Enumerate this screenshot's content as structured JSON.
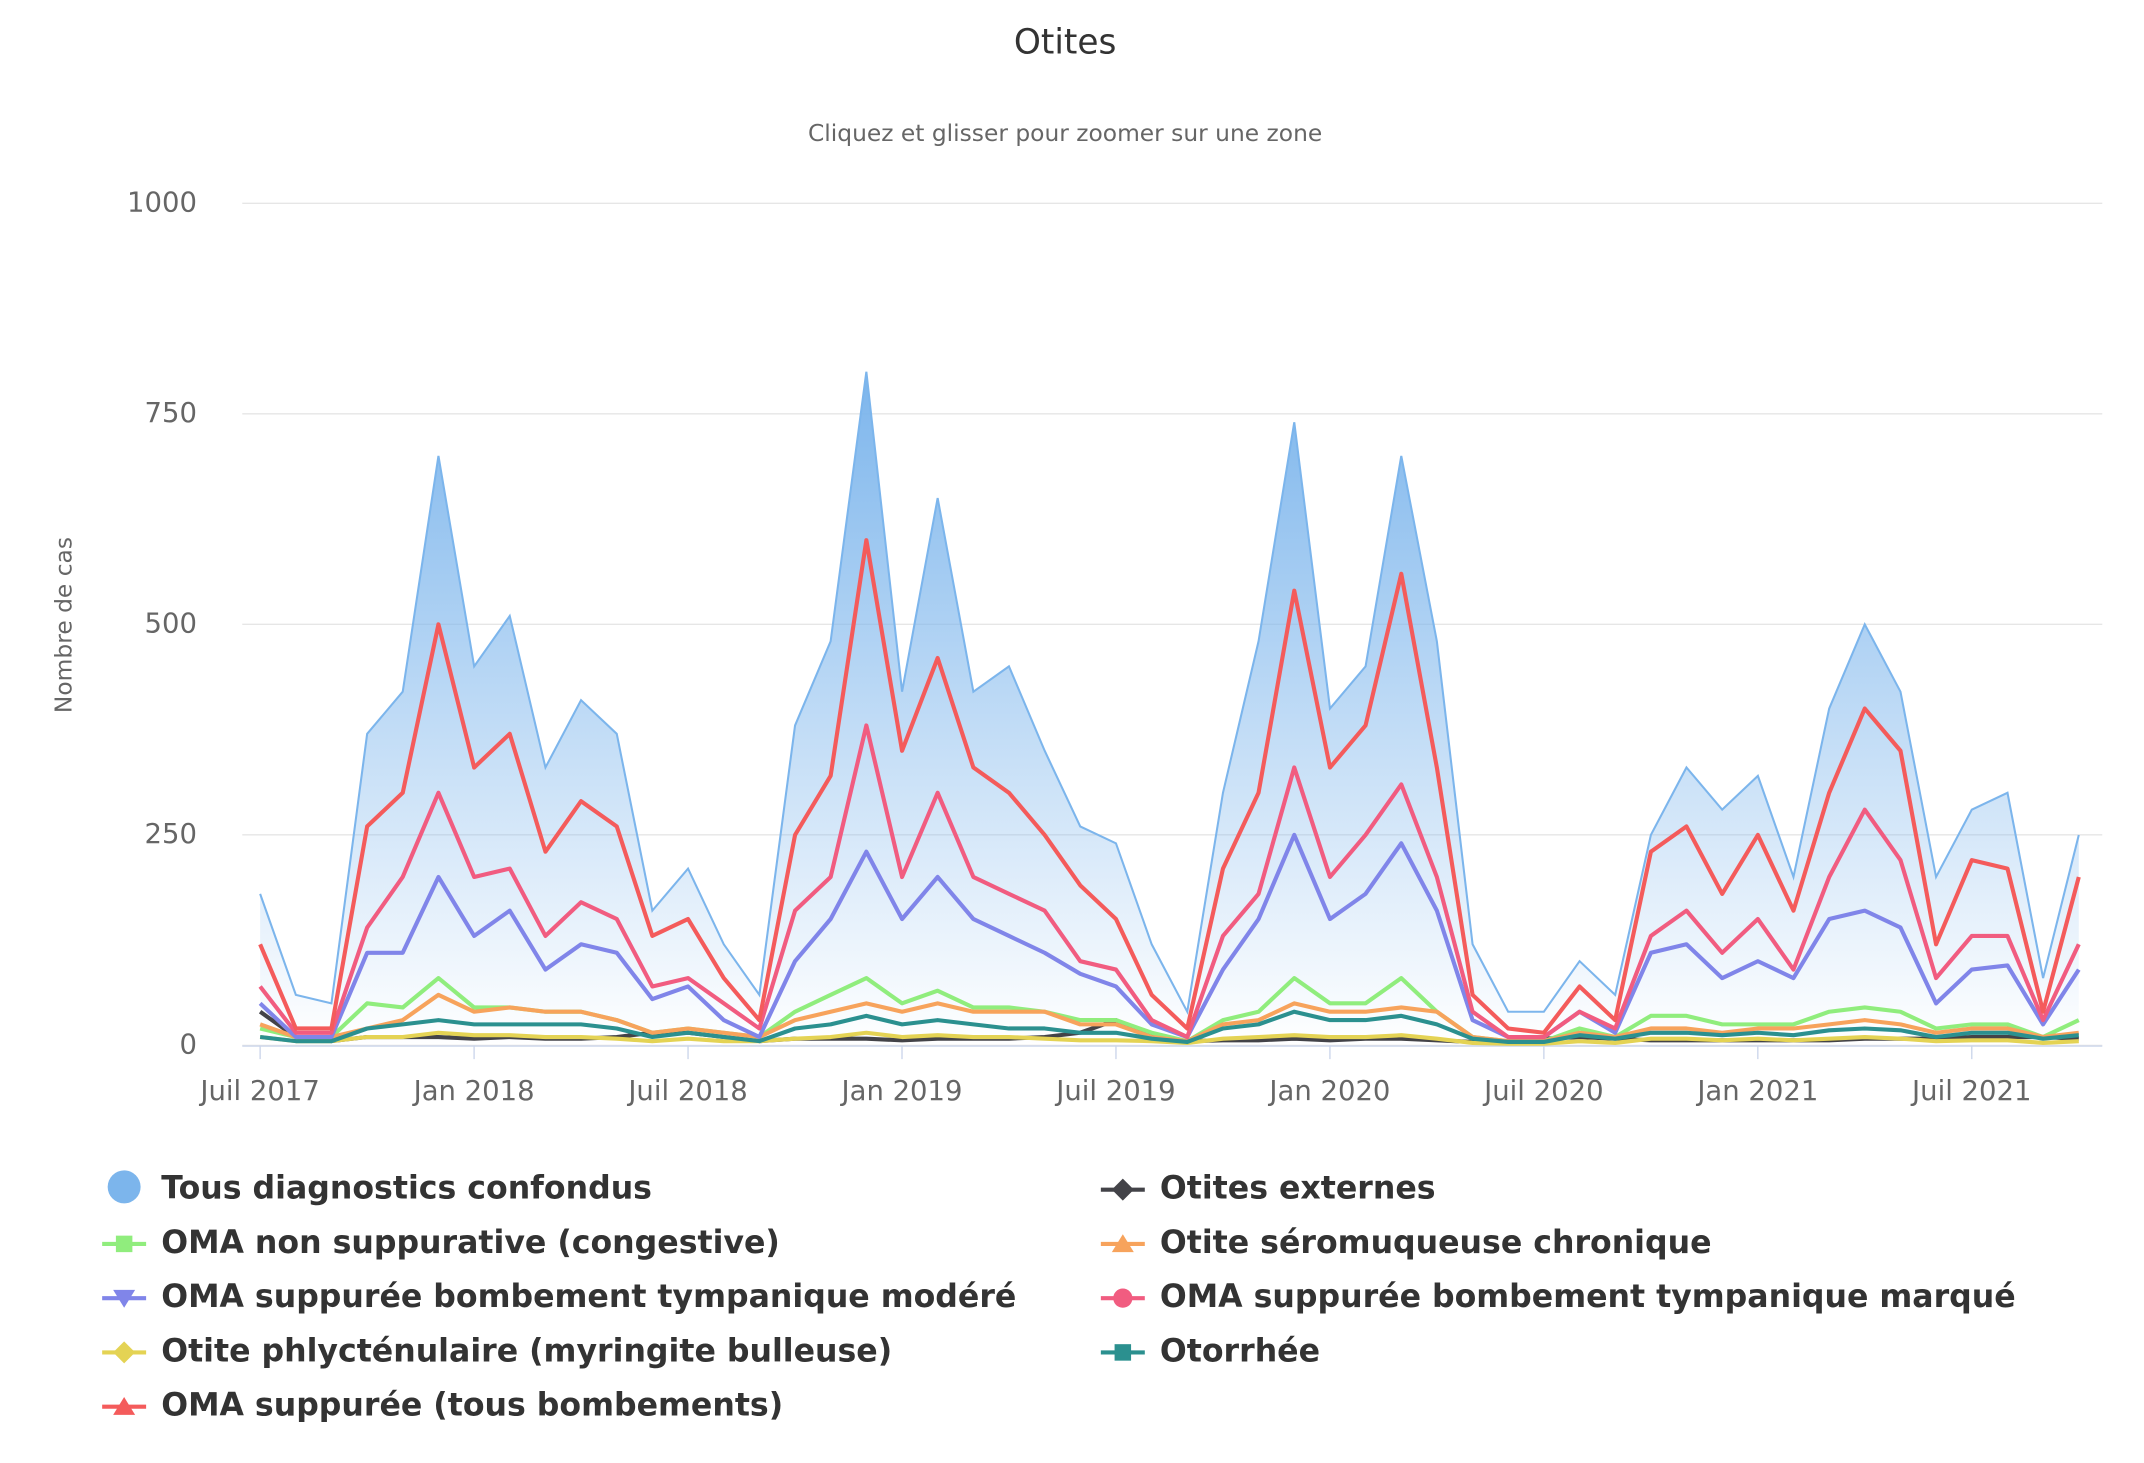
{
  "chart_data": {
    "type": "line",
    "title": "Otites",
    "subtitle": "Cliquez et glisser pour zoomer sur une zone",
    "y_label": "Nombre de cas",
    "x": [
      "2017-07",
      "2017-08",
      "2017-09",
      "2017-10",
      "2017-11",
      "2017-12",
      "2018-01",
      "2018-02",
      "2018-03",
      "2018-04",
      "2018-05",
      "2018-06",
      "2018-07",
      "2018-08",
      "2018-09",
      "2018-10",
      "2018-11",
      "2018-12",
      "2019-01",
      "2019-02",
      "2019-03",
      "2019-04",
      "2019-05",
      "2019-06",
      "2019-07",
      "2019-08",
      "2019-09",
      "2019-10",
      "2019-11",
      "2019-12",
      "2020-01",
      "2020-02",
      "2020-03",
      "2020-04",
      "2020-05",
      "2020-06",
      "2020-07",
      "2020-08",
      "2020-09",
      "2020-10",
      "2020-11",
      "2020-12",
      "2021-01",
      "2021-02",
      "2021-03",
      "2021-04",
      "2021-05",
      "2021-06",
      "2021-07",
      "2021-08",
      "2021-09",
      "2021-10"
    ],
    "xticks": [
      {
        "value": "2017-07",
        "label": "Juil 2017"
      },
      {
        "value": "2018-01",
        "label": "Jan 2018"
      },
      {
        "value": "2018-07",
        "label": "Juil 2018"
      },
      {
        "value": "2019-01",
        "label": "Jan 2019"
      },
      {
        "value": "2019-07",
        "label": "Juil 2019"
      },
      {
        "value": "2020-01",
        "label": "Jan 2020"
      },
      {
        "value": "2020-07",
        "label": "Juil 2020"
      },
      {
        "value": "2021-01",
        "label": "Jan 2021"
      },
      {
        "value": "2021-07",
        "label": "Juil 2021"
      }
    ],
    "ylim": [
      0,
      1000
    ],
    "yticks": [
      0,
      250,
      500,
      750,
      1000
    ],
    "grid": true,
    "legend": "bottom",
    "series": [
      {
        "name": "Tous diagnostics confondus",
        "color": "#7cb5ec",
        "marker": "circle",
        "area": true,
        "values": [
          180,
          60,
          50,
          370,
          420,
          700,
          450,
          510,
          330,
          410,
          370,
          160,
          210,
          120,
          60,
          380,
          480,
          800,
          420,
          650,
          420,
          450,
          350,
          260,
          240,
          120,
          40,
          300,
          480,
          740,
          400,
          450,
          700,
          480,
          120,
          40,
          40,
          100,
          60,
          250,
          330,
          280,
          320,
          200,
          400,
          500,
          420,
          200,
          280,
          300,
          80,
          250
        ]
      },
      {
        "name": "Otites externes",
        "color": "#434348",
        "marker": "diamond",
        "values": [
          40,
          10,
          5,
          10,
          10,
          10,
          8,
          10,
          8,
          8,
          10,
          15,
          15,
          10,
          5,
          8,
          8,
          8,
          6,
          8,
          8,
          8,
          10,
          15,
          30,
          10,
          5,
          6,
          6,
          8,
          6,
          8,
          8,
          6,
          4,
          5,
          8,
          10,
          8,
          6,
          6,
          6,
          6,
          6,
          6,
          8,
          8,
          8,
          10,
          10,
          10,
          8
        ]
      },
      {
        "name": "OMA non suppurative (congestive)",
        "color": "#90ed7d",
        "marker": "square",
        "values": [
          20,
          10,
          10,
          50,
          45,
          80,
          45,
          45,
          40,
          40,
          30,
          15,
          20,
          15,
          10,
          40,
          60,
          80,
          50,
          65,
          45,
          45,
          40,
          30,
          30,
          15,
          5,
          30,
          40,
          80,
          50,
          50,
          80,
          40,
          10,
          5,
          5,
          20,
          10,
          35,
          35,
          25,
          25,
          25,
          40,
          45,
          40,
          20,
          25,
          25,
          10,
          30
        ]
      },
      {
        "name": "Otite séromuqueuse chronique",
        "color": "#f7a35c",
        "marker": "triangle",
        "values": [
          25,
          10,
          10,
          20,
          30,
          60,
          40,
          45,
          40,
          40,
          30,
          15,
          20,
          15,
          10,
          30,
          40,
          50,
          40,
          50,
          40,
          40,
          40,
          25,
          25,
          10,
          5,
          25,
          30,
          50,
          40,
          40,
          45,
          40,
          10,
          5,
          5,
          15,
          10,
          20,
          20,
          15,
          20,
          20,
          25,
          30,
          25,
          15,
          20,
          20,
          10,
          15
        ]
      },
      {
        "name": "OMA suppurée bombement tympanique modéré",
        "color": "#8085e9",
        "marker": "triangle-down",
        "values": [
          50,
          10,
          10,
          110,
          110,
          200,
          130,
          160,
          90,
          120,
          110,
          55,
          70,
          30,
          10,
          100,
          150,
          230,
          150,
          200,
          150,
          130,
          110,
          85,
          70,
          25,
          10,
          90,
          150,
          250,
          150,
          180,
          240,
          160,
          30,
          10,
          10,
          40,
          15,
          110,
          120,
          80,
          100,
          80,
          150,
          160,
          140,
          50,
          90,
          95,
          25,
          90
        ]
      },
      {
        "name": "OMA suppurée bombement tympanique marqué",
        "color": "#f15c80",
        "marker": "circle",
        "values": [
          70,
          15,
          15,
          140,
          200,
          300,
          200,
          210,
          130,
          170,
          150,
          70,
          80,
          50,
          20,
          160,
          200,
          380,
          200,
          300,
          200,
          180,
          160,
          100,
          90,
          30,
          10,
          130,
          180,
          330,
          200,
          250,
          310,
          200,
          40,
          10,
          10,
          40,
          20,
          130,
          160,
          110,
          150,
          90,
          200,
          280,
          220,
          80,
          130,
          130,
          30,
          120
        ]
      },
      {
        "name": "Otite phlycténulaire (myringite bulleuse)",
        "color": "#e4d354",
        "marker": "diamond",
        "values": [
          10,
          5,
          5,
          10,
          10,
          15,
          12,
          12,
          10,
          10,
          8,
          5,
          8,
          5,
          5,
          8,
          10,
          15,
          10,
          12,
          10,
          10,
          8,
          6,
          6,
          5,
          3,
          8,
          10,
          12,
          10,
          10,
          12,
          8,
          3,
          2,
          2,
          5,
          3,
          8,
          8,
          6,
          8,
          6,
          8,
          10,
          8,
          5,
          6,
          6,
          3,
          5
        ]
      },
      {
        "name": "Otorrhée",
        "color": "#2b908f",
        "marker": "square",
        "values": [
          10,
          5,
          5,
          20,
          25,
          30,
          25,
          25,
          25,
          25,
          20,
          10,
          15,
          10,
          5,
          20,
          25,
          35,
          25,
          30,
          25,
          20,
          20,
          15,
          15,
          8,
          4,
          20,
          25,
          40,
          30,
          30,
          35,
          25,
          8,
          4,
          4,
          12,
          8,
          15,
          15,
          12,
          15,
          12,
          18,
          20,
          18,
          10,
          15,
          15,
          8,
          12
        ]
      },
      {
        "name": "OMA suppurée (tous bombements)",
        "color": "#f45b5b",
        "marker": "triangle",
        "values": [
          120,
          20,
          20,
          260,
          300,
          500,
          330,
          370,
          230,
          290,
          260,
          130,
          150,
          80,
          30,
          250,
          320,
          600,
          350,
          460,
          330,
          300,
          250,
          190,
          150,
          60,
          20,
          210,
          300,
          540,
          330,
          380,
          560,
          330,
          60,
          20,
          15,
          70,
          30,
          230,
          260,
          180,
          250,
          160,
          300,
          400,
          350,
          120,
          220,
          210,
          40,
          200
        ]
      }
    ]
  }
}
